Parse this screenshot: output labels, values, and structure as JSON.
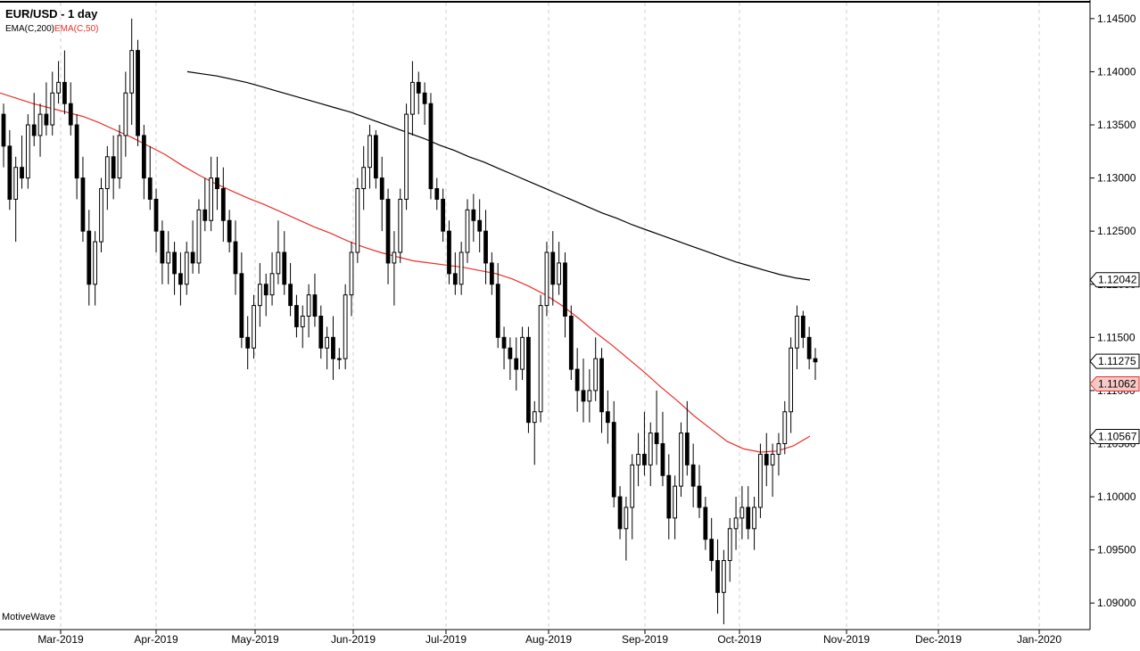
{
  "chart_data": {
    "type": "candlestick",
    "title": "EUR/USD - 1 day",
    "brand": "MotiveWave",
    "indicators": [
      {
        "name": "EMA(C,200)",
        "color": "#000000"
      },
      {
        "name": "EMA(C,50)",
        "color": "#e8302a"
      }
    ],
    "ylim": [
      1.0875,
      1.1465
    ],
    "y_ticks": [
      1.09,
      1.095,
      1.1,
      1.105,
      1.11,
      1.115,
      1.12,
      1.125,
      1.13,
      1.135,
      1.14,
      1.145
    ],
    "y_tick_labels": [
      "1.09000",
      "1.09500",
      "1.10000",
      "1.10500",
      "1.11000",
      "1.11500",
      "1.12000",
      "1.12500",
      "1.13000",
      "1.13500",
      "1.14000",
      "1.14500"
    ],
    "x_labels": [
      "Mar-2019",
      "Apr-2019",
      "May-2019",
      "Jun-2019",
      "Jul-2019",
      "Aug-2019",
      "Sep-2019",
      "Oct-2019",
      "Nov-2019",
      "Dec-2019",
      "Jan-2020"
    ],
    "price_markers": [
      {
        "value": 1.12042,
        "label": "1.12042",
        "color": "#000000",
        "fill": "#ffffff"
      },
      {
        "value": 1.11275,
        "label": "1.11275",
        "color": "#000000",
        "fill": "#ffffff"
      },
      {
        "value": 1.11062,
        "label": "1.11062",
        "color": "#e8302a",
        "fill": "#f7c9c6"
      },
      {
        "value": 1.10567,
        "label": "1.10567",
        "color": "#000000",
        "fill": "#ffffff"
      }
    ],
    "candles": [
      [
        1.136,
        1.137,
        1.131,
        1.133
      ],
      [
        1.133,
        1.1345,
        1.127,
        1.128
      ],
      [
        1.128,
        1.132,
        1.124,
        1.131
      ],
      [
        1.131,
        1.134,
        1.129,
        1.13
      ],
      [
        1.13,
        1.136,
        1.129,
        1.135
      ],
      [
        1.135,
        1.138,
        1.133,
        1.134
      ],
      [
        1.134,
        1.137,
        1.132,
        1.136
      ],
      [
        1.136,
        1.139,
        1.134,
        1.135
      ],
      [
        1.135,
        1.14,
        1.134,
        1.138
      ],
      [
        1.138,
        1.141,
        1.137,
        1.139
      ],
      [
        1.139,
        1.142,
        1.136,
        1.137
      ],
      [
        1.137,
        1.139,
        1.134,
        1.135
      ],
      [
        1.135,
        1.136,
        1.128,
        1.13
      ],
      [
        1.13,
        1.132,
        1.124,
        1.125
      ],
      [
        1.125,
        1.127,
        1.118,
        1.12
      ],
      [
        1.12,
        1.125,
        1.118,
        1.124
      ],
      [
        1.124,
        1.13,
        1.123,
        1.129
      ],
      [
        1.129,
        1.133,
        1.127,
        1.132
      ],
      [
        1.132,
        1.134,
        1.128,
        1.13
      ],
      [
        1.13,
        1.135,
        1.129,
        1.134
      ],
      [
        1.134,
        1.14,
        1.132,
        1.138
      ],
      [
        1.138,
        1.145,
        1.135,
        1.142
      ],
      [
        1.142,
        1.143,
        1.133,
        1.134
      ],
      [
        1.134,
        1.135,
        1.128,
        1.13
      ],
      [
        1.13,
        1.133,
        1.127,
        1.128
      ],
      [
        1.128,
        1.129,
        1.123,
        1.125
      ],
      [
        1.125,
        1.126,
        1.12,
        1.122
      ],
      [
        1.122,
        1.125,
        1.12,
        1.123
      ],
      [
        1.123,
        1.124,
        1.119,
        1.121
      ],
      [
        1.121,
        1.123,
        1.118,
        1.12
      ],
      [
        1.12,
        1.124,
        1.119,
        1.123
      ],
      [
        1.123,
        1.126,
        1.121,
        1.122
      ],
      [
        1.122,
        1.128,
        1.121,
        1.127
      ],
      [
        1.127,
        1.13,
        1.125,
        1.126
      ],
      [
        1.126,
        1.132,
        1.125,
        1.13
      ],
      [
        1.13,
        1.132,
        1.127,
        1.129
      ],
      [
        1.129,
        1.131,
        1.124,
        1.126
      ],
      [
        1.126,
        1.127,
        1.123,
        1.124
      ],
      [
        1.124,
        1.126,
        1.119,
        1.121
      ],
      [
        1.121,
        1.123,
        1.114,
        1.115
      ],
      [
        1.115,
        1.117,
        1.112,
        1.114
      ],
      [
        1.114,
        1.119,
        1.113,
        1.118
      ],
      [
        1.118,
        1.122,
        1.116,
        1.12
      ],
      [
        1.12,
        1.121,
        1.117,
        1.119
      ],
      [
        1.119,
        1.123,
        1.118,
        1.121
      ],
      [
        1.121,
        1.126,
        1.12,
        1.123
      ],
      [
        1.123,
        1.125,
        1.119,
        1.12
      ],
      [
        1.12,
        1.122,
        1.117,
        1.118
      ],
      [
        1.118,
        1.119,
        1.115,
        1.116
      ],
      [
        1.116,
        1.118,
        1.114,
        1.117
      ],
      [
        1.117,
        1.12,
        1.115,
        1.119
      ],
      [
        1.119,
        1.121,
        1.116,
        1.117
      ],
      [
        1.117,
        1.118,
        1.113,
        1.114
      ],
      [
        1.114,
        1.116,
        1.112,
        1.115
      ],
      [
        1.115,
        1.117,
        1.111,
        1.113
      ],
      [
        1.113,
        1.114,
        1.112,
        1.113
      ],
      [
        1.113,
        1.12,
        1.112,
        1.119
      ],
      [
        1.119,
        1.124,
        1.117,
        1.123
      ],
      [
        1.123,
        1.13,
        1.122,
        1.129
      ],
      [
        1.129,
        1.133,
        1.127,
        1.131
      ],
      [
        1.131,
        1.135,
        1.129,
        1.134
      ],
      [
        1.134,
        1.1345,
        1.129,
        1.13
      ],
      [
        1.13,
        1.132,
        1.125,
        1.128
      ],
      [
        1.128,
        1.129,
        1.12,
        1.122
      ],
      [
        1.122,
        1.125,
        1.118,
        1.123
      ],
      [
        1.123,
        1.129,
        1.122,
        1.128
      ],
      [
        1.128,
        1.137,
        1.127,
        1.136
      ],
      [
        1.136,
        1.141,
        1.134,
        1.139
      ],
      [
        1.139,
        1.14,
        1.136,
        1.138
      ],
      [
        1.138,
        1.139,
        1.135,
        1.137
      ],
      [
        1.137,
        1.138,
        1.128,
        1.129
      ],
      [
        1.129,
        1.13,
        1.127,
        1.128
      ],
      [
        1.128,
        1.129,
        1.124,
        1.125
      ],
      [
        1.125,
        1.126,
        1.12,
        1.121
      ],
      [
        1.121,
        1.123,
        1.119,
        1.12
      ],
      [
        1.12,
        1.124,
        1.119,
        1.123
      ],
      [
        1.123,
        1.128,
        1.122,
        1.127
      ],
      [
        1.127,
        1.1285,
        1.124,
        1.126
      ],
      [
        1.126,
        1.128,
        1.123,
        1.125
      ],
      [
        1.125,
        1.127,
        1.12,
        1.122
      ],
      [
        1.122,
        1.123,
        1.119,
        1.12
      ],
      [
        1.12,
        1.122,
        1.114,
        1.115
      ],
      [
        1.115,
        1.116,
        1.112,
        1.114
      ],
      [
        1.114,
        1.115,
        1.111,
        1.113
      ],
      [
        1.113,
        1.115,
        1.11,
        1.112
      ],
      [
        1.112,
        1.116,
        1.111,
        1.115
      ],
      [
        1.115,
        1.116,
        1.106,
        1.107
      ],
      [
        1.107,
        1.109,
        1.103,
        1.108
      ],
      [
        1.108,
        1.119,
        1.107,
        1.118
      ],
      [
        1.118,
        1.124,
        1.117,
        1.123
      ],
      [
        1.123,
        1.125,
        1.118,
        1.12
      ],
      [
        1.12,
        1.124,
        1.119,
        1.122
      ],
      [
        1.122,
        1.123,
        1.115,
        1.117
      ],
      [
        1.117,
        1.118,
        1.111,
        1.112
      ],
      [
        1.112,
        1.114,
        1.108,
        1.11
      ],
      [
        1.11,
        1.113,
        1.107,
        1.109
      ],
      [
        1.109,
        1.112,
        1.107,
        1.11
      ],
      [
        1.11,
        1.115,
        1.109,
        1.113
      ],
      [
        1.113,
        1.114,
        1.106,
        1.108
      ],
      [
        1.108,
        1.11,
        1.105,
        1.107
      ],
      [
        1.107,
        1.109,
        1.099,
        1.1
      ],
      [
        1.1,
        1.101,
        1.096,
        1.097
      ],
      [
        1.097,
        1.1,
        1.094,
        1.099
      ],
      [
        1.099,
        1.104,
        1.096,
        1.103
      ],
      [
        1.103,
        1.106,
        1.101,
        1.104
      ],
      [
        1.104,
        1.108,
        1.102,
        1.103
      ],
      [
        1.103,
        1.107,
        1.101,
        1.106
      ],
      [
        1.106,
        1.11,
        1.103,
        1.105
      ],
      [
        1.105,
        1.108,
        1.101,
        1.102
      ],
      [
        1.102,
        1.104,
        1.096,
        1.098
      ],
      [
        1.098,
        1.102,
        1.096,
        1.101
      ],
      [
        1.101,
        1.107,
        1.1,
        1.106
      ],
      [
        1.106,
        1.109,
        1.102,
        1.103
      ],
      [
        1.103,
        1.105,
        1.099,
        1.101
      ],
      [
        1.101,
        1.103,
        1.098,
        1.099
      ],
      [
        1.099,
        1.1,
        1.095,
        1.096
      ],
      [
        1.096,
        1.098,
        1.093,
        1.094
      ],
      [
        1.094,
        1.096,
        1.089,
        1.091
      ],
      [
        1.091,
        1.095,
        1.088,
        1.094
      ],
      [
        1.094,
        1.098,
        1.092,
        1.097
      ],
      [
        1.097,
        1.1,
        1.095,
        1.098
      ],
      [
        1.098,
        1.101,
        1.096,
        1.099
      ],
      [
        1.099,
        1.101,
        1.096,
        1.097
      ],
      [
        1.097,
        1.1,
        1.095,
        1.099
      ],
      [
        1.099,
        1.105,
        1.098,
        1.104
      ],
      [
        1.104,
        1.106,
        1.101,
        1.103
      ],
      [
        1.103,
        1.105,
        1.1,
        1.104
      ],
      [
        1.104,
        1.106,
        1.102,
        1.105
      ],
      [
        1.105,
        1.109,
        1.104,
        1.108
      ],
      [
        1.108,
        1.115,
        1.106,
        1.114
      ],
      [
        1.114,
        1.118,
        1.112,
        1.117
      ],
      [
        1.117,
        1.1175,
        1.114,
        1.115
      ],
      [
        1.115,
        1.116,
        1.112,
        1.113
      ],
      [
        1.113,
        1.114,
        1.111,
        1.1127
      ]
    ],
    "ema200": [
      1.14,
      1.1398,
      1.1396,
      1.1393,
      1.139,
      1.1386,
      1.1382,
      1.1378,
      1.1374,
      1.137,
      1.1366,
      1.1362,
      1.1357,
      1.1352,
      1.1347,
      1.1342,
      1.1337,
      1.1331,
      1.1326,
      1.132,
      1.1315,
      1.1309,
      1.1303,
      1.1297,
      1.1291,
      1.1285,
      1.1279,
      1.1273,
      1.1267,
      1.1262,
      1.1256,
      1.1251,
      1.1246,
      1.1241,
      1.1236,
      1.1231,
      1.1226,
      1.1221,
      1.1217,
      1.1213,
      1.1209,
      1.1206,
      1.1204
    ],
    "ema50": [
      1.138,
      1.1375,
      1.137,
      1.1366,
      1.1362,
      1.1358,
      1.1352,
      1.1345,
      1.1338,
      1.133,
      1.1322,
      1.1312,
      1.1303,
      1.1295,
      1.1288,
      1.1281,
      1.1275,
      1.1268,
      1.1261,
      1.1254,
      1.1248,
      1.1241,
      1.1235,
      1.123,
      1.1226,
      1.1222,
      1.122,
      1.1218,
      1.1216,
      1.1213,
      1.121,
      1.1205,
      1.1198,
      1.119,
      1.118,
      1.1168,
      1.1155,
      1.1143,
      1.113,
      1.1117,
      1.1103,
      1.109,
      1.1076,
      1.1064,
      1.1052,
      1.1045,
      1.1042,
      1.1043,
      1.1048,
      1.1057
    ]
  }
}
